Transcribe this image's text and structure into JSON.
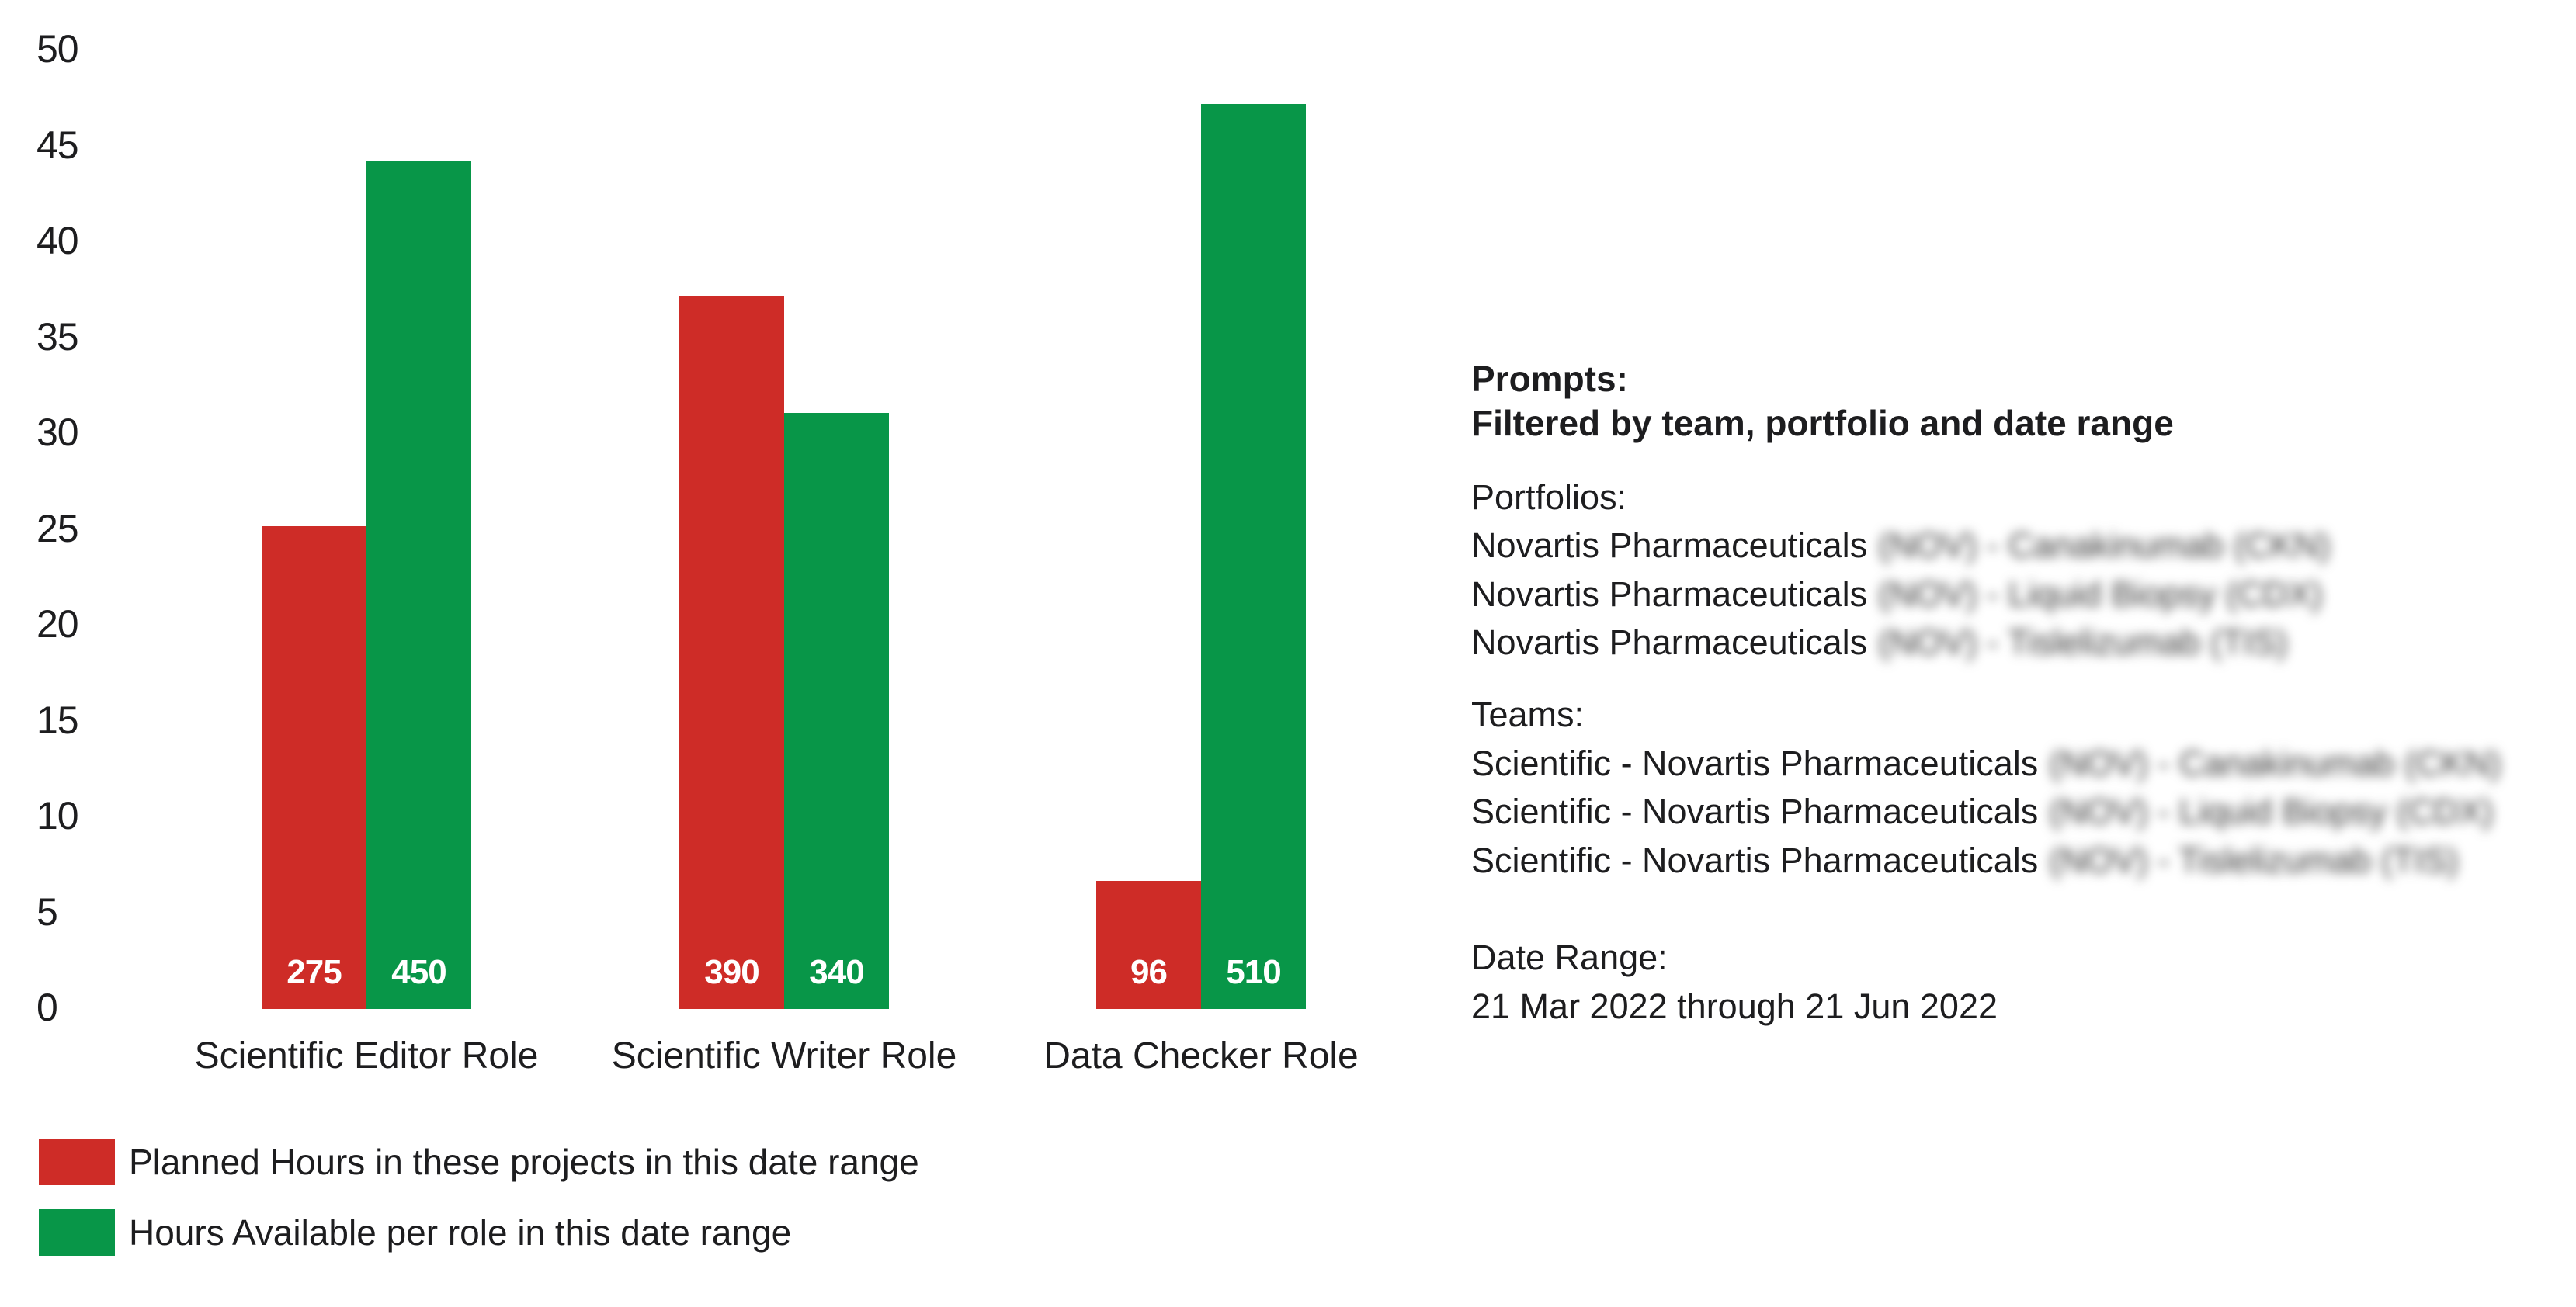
{
  "chart_data": {
    "type": "bar",
    "categories": [
      "Scientific Editor Role",
      "Scientific Writer Role",
      "Data Checker Role"
    ],
    "series": [
      {
        "name": "Planned Hours in these projects in this date range",
        "color": "#ce2c27",
        "values": [
          275,
          390,
          96
        ],
        "value_labels": [
          "275",
          "390",
          "96"
        ],
        "display_heights_axis_units": [
          25.2,
          37.2,
          6.7
        ]
      },
      {
        "name": "Hours Available per role in this date range",
        "color": "#089648",
        "values": [
          450,
          340,
          510
        ],
        "value_labels": [
          "450",
          "340",
          "510"
        ],
        "display_heights_axis_units": [
          44.2,
          31.1,
          47.2
        ]
      }
    ],
    "ylim": [
      0,
      50
    ],
    "yticks": [
      0,
      5,
      10,
      15,
      20,
      25,
      30,
      35,
      40,
      45,
      50
    ],
    "grid": false,
    "legend_position": "bottom-left",
    "bar_value_label_color": "#ffffff"
  },
  "info_panel": {
    "prompts_label": "Prompts:",
    "filtered_by": "Filtered by team, portfolio and date range",
    "portfolios_label": "Portfolios:",
    "portfolio_items": [
      {
        "prefix": "Novartis Pharmaceuticals",
        "blurred": "(NOV) - Canakinumab (CKN)"
      },
      {
        "prefix": "Novartis Pharmaceuticals",
        "blurred": "(NOV) - Liquid Biopsy (CDX)"
      },
      {
        "prefix": "Novartis Pharmaceuticals",
        "blurred": "(NOV) - Tislelizumab (TIS)"
      }
    ],
    "teams_label": "Teams:",
    "team_items": [
      {
        "prefix": "Scientific - Novartis Pharmaceuticals",
        "blurred": "(NOV) - Canakinumab (CKN)"
      },
      {
        "prefix": "Scientific - Novartis Pharmaceuticals",
        "blurred": "(NOV) - Liquid Biopsy (CDX)"
      },
      {
        "prefix": "Scientific - Novartis Pharmaceuticals",
        "blurred": "(NOV) - Tislelizumab (TIS)"
      }
    ],
    "date_range_label": "Date Range:",
    "date_range_value": "21 Mar 2022 through 21 Jun 2022"
  }
}
